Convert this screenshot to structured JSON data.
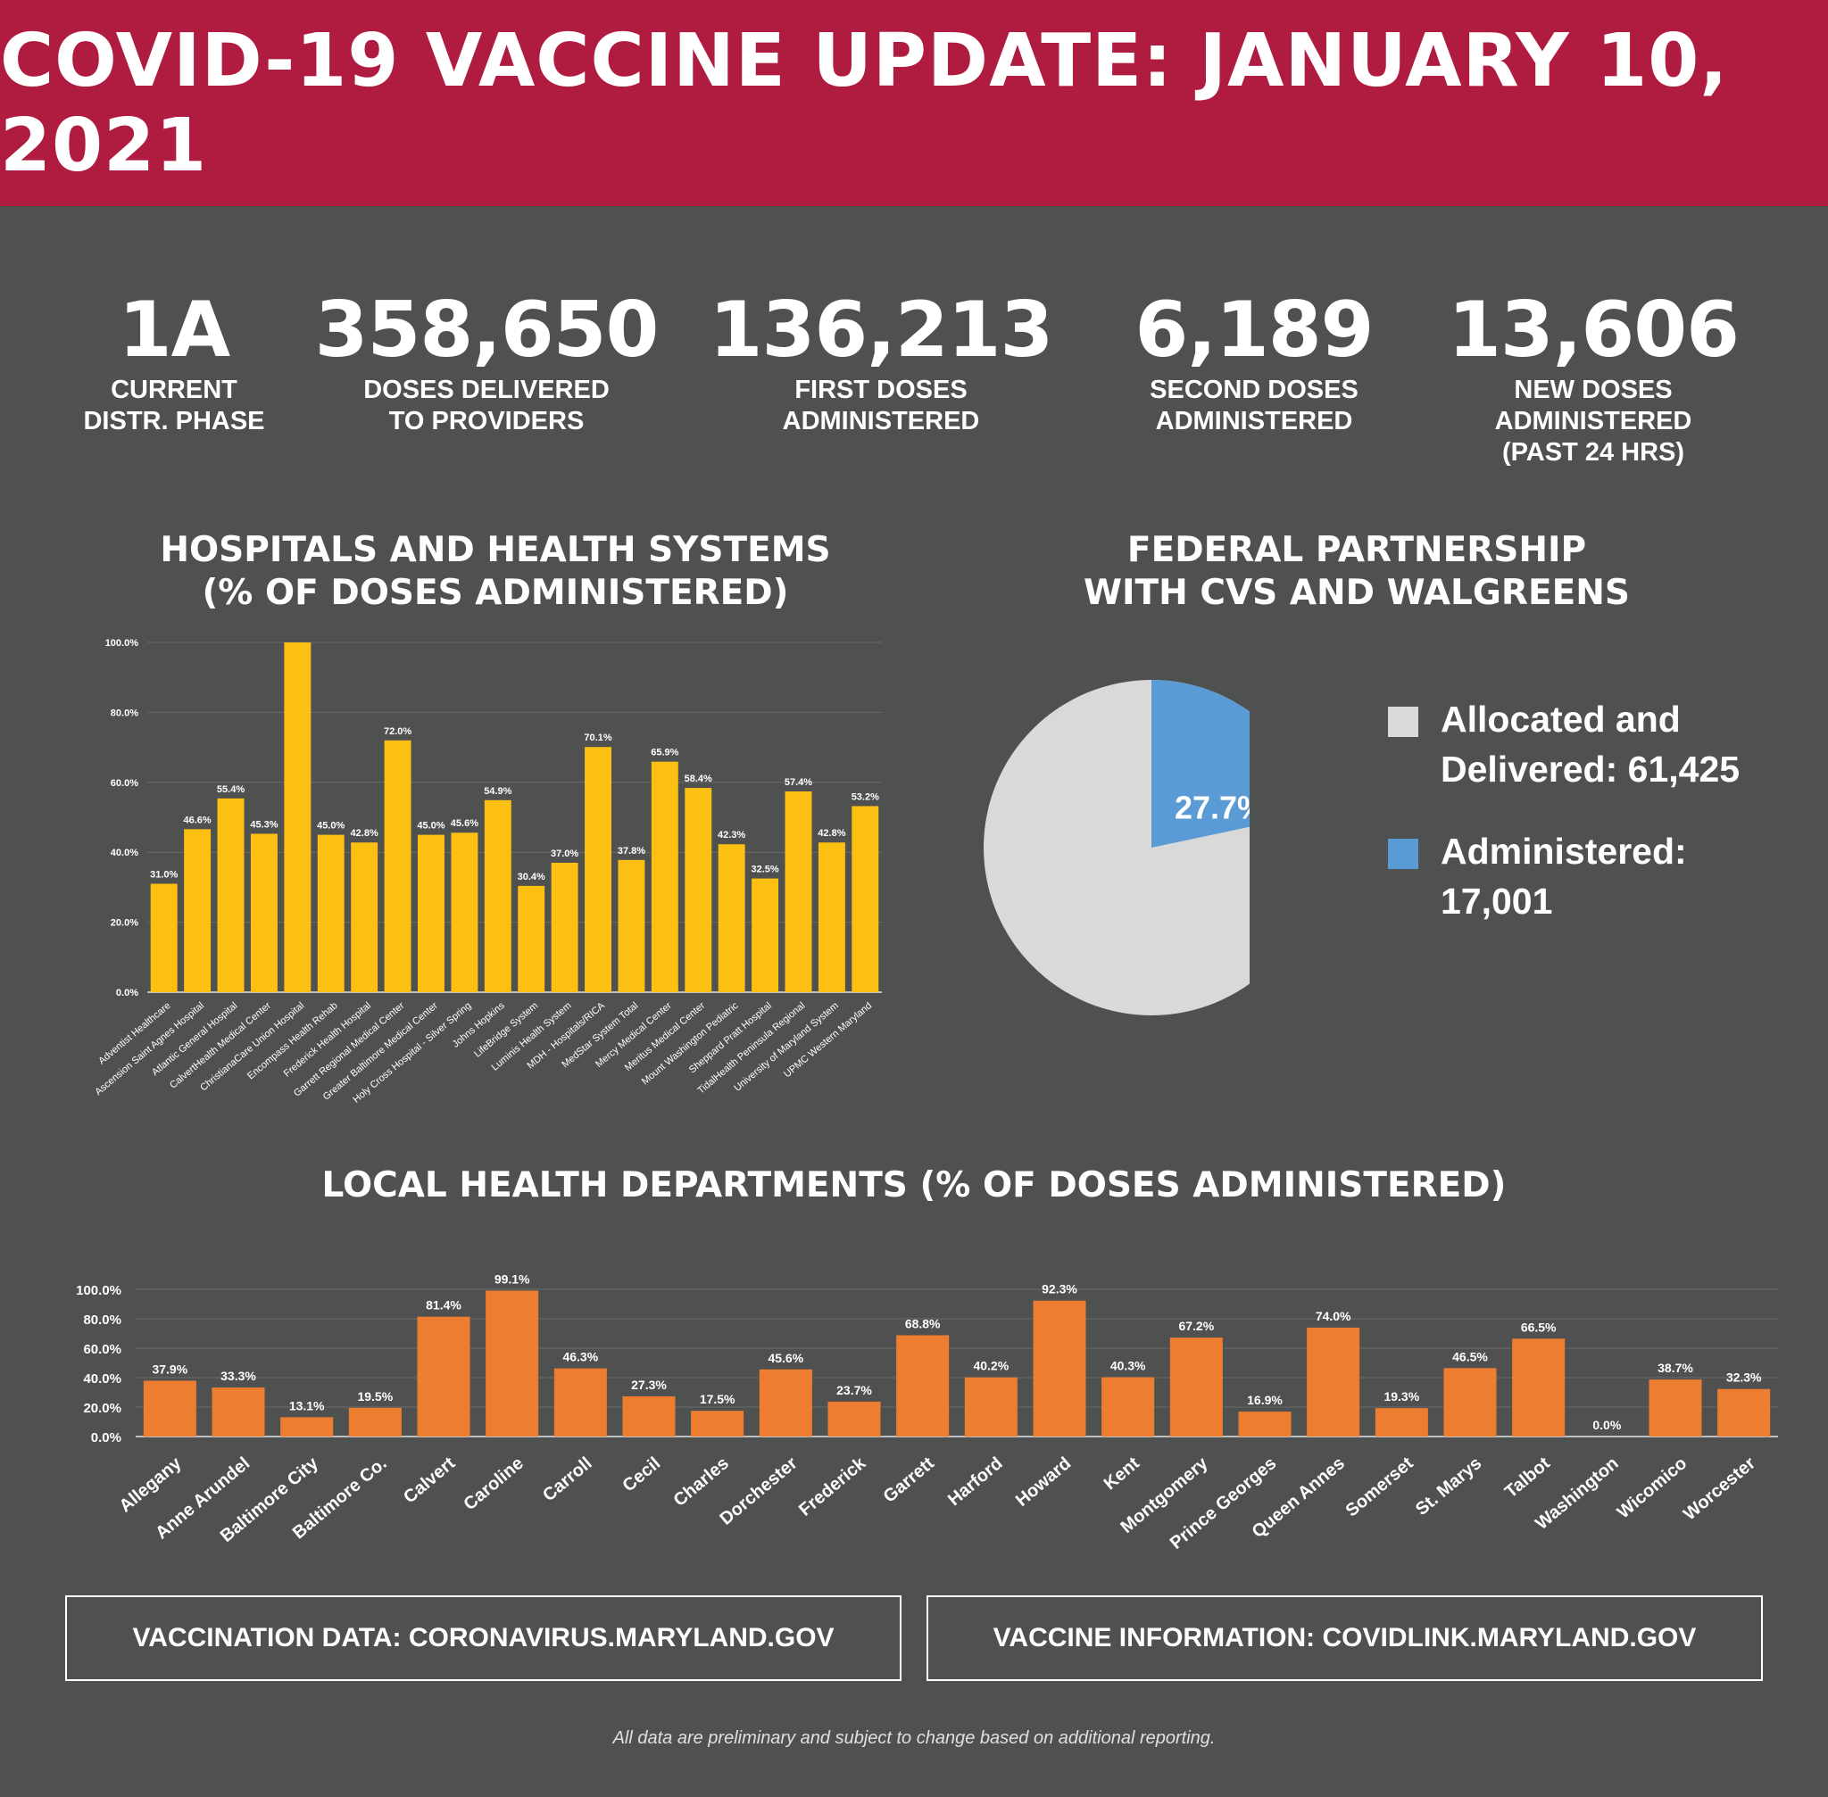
{
  "header": {
    "title": "COVID-19 VACCINE UPDATE: JANUARY 10, 2021"
  },
  "stats": [
    {
      "value": "1A",
      "label": "CURRENT\nDISTR. PHASE"
    },
    {
      "value": "358,650",
      "label": "DOSES DELIVERED\nTO PROVIDERS"
    },
    {
      "value": "136,213",
      "label": "FIRST DOSES\nADMINISTERED"
    },
    {
      "value": "6,189",
      "label": "SECOND DOSES\nADMINISTERED"
    },
    {
      "value": "13,606",
      "label": "NEW DOSES\nADMINISTERED\n(PAST 24 HRS)"
    }
  ],
  "colors": {
    "header": "#b01c3f",
    "background": "#4f5050",
    "hospital_bar": "#fcc013",
    "county_bar": "#ed7d31",
    "pie_allocated": "#d9d9d9",
    "pie_administered": "#5b9bd5"
  },
  "chart_data": [
    {
      "type": "bar",
      "title": "HOSPITALS AND HEALTH SYSTEMS\n(% OF DOSES ADMINISTERED)",
      "ylim": [
        0,
        100
      ],
      "yticks": [
        "0.0%",
        "20.0%",
        "40.0%",
        "60.0%",
        "80.0%",
        "100.0%"
      ],
      "grid": true,
      "categories": [
        "Adventist Healthcare",
        "Ascension Saint Agnes Hospital",
        "Atlantic General Hospital",
        "CalvertHealth Medical Center",
        "ChristianaCare Union Hospital",
        "Encompass Health Rehab",
        "Frederick Health Hospital",
        "Garrett Regional Medical Center",
        "Greater Baltimore Medical Center",
        "Holy Cross Hospital - Silver Spring",
        "Johns Hopkins",
        "LifeBridge System",
        "Luminis Health System",
        "MDH - Hospitals/RICA",
        "MedStar System Total",
        "Mercy Medical Center",
        "Meritus Medical Center",
        "Mount Washington Pediatric",
        "Sheppard Pratt Hospital",
        "TidalHealth Peninsula Regional",
        "University of Maryland System",
        "UPMC Western Maryland"
      ],
      "values": [
        31.0,
        46.6,
        55.4,
        45.3,
        100.0,
        45.0,
        42.8,
        72.0,
        45.0,
        45.6,
        54.9,
        30.4,
        37.0,
        70.1,
        37.8,
        65.9,
        58.4,
        42.3,
        32.5,
        57.4,
        42.8,
        53.2
      ],
      "labels": [
        "31.0%",
        "46.6%",
        "55.4%",
        "45.3%",
        "",
        "45.0%",
        "42.8%",
        "72.0%",
        "45.0%",
        "45.6%",
        "54.9%",
        "30.4%",
        "37.0%",
        "70.1%",
        "37.8%",
        "65.9%",
        "58.4%",
        "42.3%",
        "32.5%",
        "57.4%",
        "42.8%",
        "53.2%"
      ]
    },
    {
      "type": "pie",
      "title": "FEDERAL PARTNERSHIP\nWITH CVS AND WALGREENS",
      "slices": [
        {
          "name": "Allocated and\nDelivered: 61,425",
          "value": 61425
        },
        {
          "name": "Administered:\n17,001",
          "value": 17001
        }
      ],
      "slice_label": "27.7%",
      "legend": "right"
    },
    {
      "type": "bar",
      "title": "LOCAL HEALTH DEPARTMENTS (% OF DOSES ADMINISTERED)",
      "ylim": [
        0,
        100
      ],
      "yticks": [
        "0.0%",
        "20.0%",
        "40.0%",
        "60.0%",
        "80.0%",
        "100.0%"
      ],
      "grid": true,
      "categories": [
        "Allegany",
        "Anne Arundel",
        "Baltimore City",
        "Baltimore Co.",
        "Calvert",
        "Caroline",
        "Carroll",
        "Cecil",
        "Charles",
        "Dorchester",
        "Frederick",
        "Garrett",
        "Harford",
        "Howard",
        "Kent",
        "Montgomery",
        "Prince Georges",
        "Queen Annes",
        "Somerset",
        "St. Marys",
        "Talbot",
        "Washington",
        "Wicomico",
        "Worcester"
      ],
      "values": [
        37.9,
        33.3,
        13.1,
        19.5,
        81.4,
        99.1,
        46.3,
        27.3,
        17.5,
        45.6,
        23.7,
        68.8,
        40.2,
        92.3,
        40.3,
        67.2,
        16.9,
        74.0,
        19.3,
        46.5,
        66.5,
        0.0,
        38.7,
        32.3
      ],
      "labels": [
        "37.9%",
        "33.3%",
        "13.1%",
        "19.5%",
        "81.4%",
        "99.1%",
        "46.3%",
        "27.3%",
        "17.5%",
        "45.6%",
        "23.7%",
        "68.8%",
        "40.2%",
        "92.3%",
        "40.3%",
        "67.2%",
        "16.9%",
        "74.0%",
        "19.3%",
        "46.5%",
        "66.5%",
        "0.0%",
        "38.7%",
        "32.3%"
      ]
    }
  ],
  "links": [
    {
      "text": "VACCINATION DATA: CORONAVIRUS.MARYLAND.GOV"
    },
    {
      "text": "VACCINE INFORMATION: COVIDLINK.MARYLAND.GOV"
    }
  ],
  "footnote": "All data are preliminary and subject to change based on additional reporting."
}
